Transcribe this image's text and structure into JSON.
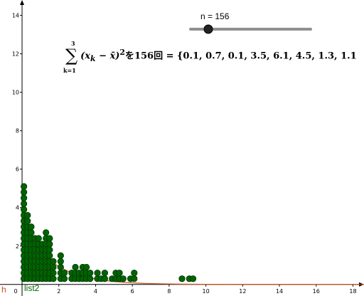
{
  "slider": {
    "label": "n = 156",
    "value": 156
  },
  "formula": {
    "upper": "3",
    "lower": "k=1",
    "expr_main": "(x",
    "expr_sub1": "k",
    "expr_mid": " − x̄)",
    "expr_sup": "2",
    "text_after": "を156回 = {0.1, 0.7, 0.1, 3.5, 6.1, 4.5, 1.3, 1.1"
  },
  "labels": {
    "function": "h",
    "list": "list2"
  },
  "colors": {
    "points": "#006400",
    "point_stroke": "#003200",
    "curve": "#c8501e",
    "axis": "#000000"
  },
  "chart_data": {
    "type": "scatter",
    "x_ticks": [
      "0",
      "2",
      "4",
      "6",
      "8",
      "10",
      "12",
      "14",
      "16",
      "18"
    ],
    "y_ticks": [
      "2",
      "4",
      "6",
      "8",
      "10",
      "12",
      "14"
    ],
    "xlim": [
      -1.2,
      18.6
    ],
    "ylim": [
      -0.6,
      14.8
    ],
    "series": [
      {
        "points": [
          [
            0.1,
            0.3
          ],
          [
            0.1,
            0.6
          ],
          [
            0.1,
            0.9
          ],
          [
            0.1,
            1.2
          ],
          [
            0.1,
            1.5
          ],
          [
            0.1,
            1.8
          ],
          [
            0.1,
            2.1
          ],
          [
            0.1,
            2.4
          ],
          [
            0.1,
            2.7
          ],
          [
            0.1,
            3.0
          ],
          [
            0.1,
            3.3
          ],
          [
            0.1,
            3.6
          ],
          [
            0.1,
            3.9
          ],
          [
            0.1,
            4.2
          ],
          [
            0.1,
            4.5
          ],
          [
            0.1,
            4.8
          ],
          [
            0.1,
            5.1
          ],
          [
            0.3,
            0.3
          ],
          [
            0.3,
            0.6
          ],
          [
            0.3,
            0.9
          ],
          [
            0.3,
            1.2
          ],
          [
            0.3,
            1.5
          ],
          [
            0.3,
            1.8
          ],
          [
            0.3,
            2.1
          ],
          [
            0.3,
            2.4
          ],
          [
            0.3,
            2.7
          ],
          [
            0.3,
            3.0
          ],
          [
            0.3,
            3.3
          ],
          [
            0.3,
            3.6
          ],
          [
            0.5,
            0.3
          ],
          [
            0.5,
            0.6
          ],
          [
            0.5,
            0.9
          ],
          [
            0.5,
            1.2
          ],
          [
            0.5,
            1.5
          ],
          [
            0.5,
            1.8
          ],
          [
            0.5,
            2.1
          ],
          [
            0.5,
            2.4
          ],
          [
            0.5,
            2.7
          ],
          [
            0.5,
            3.0
          ],
          [
            0.7,
            0.3
          ],
          [
            0.7,
            0.6
          ],
          [
            0.7,
            0.9
          ],
          [
            0.7,
            1.2
          ],
          [
            0.7,
            1.5
          ],
          [
            0.7,
            1.8
          ],
          [
            0.7,
            2.1
          ],
          [
            0.7,
            2.4
          ],
          [
            0.9,
            0.3
          ],
          [
            0.9,
            0.6
          ],
          [
            0.9,
            0.9
          ],
          [
            0.9,
            1.2
          ],
          [
            0.9,
            1.5
          ],
          [
            0.9,
            1.8
          ],
          [
            0.9,
            2.1
          ],
          [
            0.9,
            2.4
          ],
          [
            1.1,
            0.3
          ],
          [
            1.1,
            0.6
          ],
          [
            1.1,
            0.9
          ],
          [
            1.1,
            1.2
          ],
          [
            1.1,
            1.5
          ],
          [
            1.1,
            1.8
          ],
          [
            1.1,
            2.1
          ],
          [
            1.3,
            0.3
          ],
          [
            1.3,
            0.6
          ],
          [
            1.3,
            0.9
          ],
          [
            1.3,
            1.2
          ],
          [
            1.3,
            1.5
          ],
          [
            1.3,
            1.8
          ],
          [
            1.3,
            2.1
          ],
          [
            1.3,
            2.4
          ],
          [
            1.3,
            2.7
          ],
          [
            1.5,
            0.3
          ],
          [
            1.5,
            0.6
          ],
          [
            1.5,
            0.9
          ],
          [
            1.5,
            1.2
          ],
          [
            1.5,
            1.5
          ],
          [
            1.5,
            1.8
          ],
          [
            1.5,
            2.1
          ],
          [
            1.5,
            2.4
          ],
          [
            1.7,
            0.3
          ],
          [
            1.7,
            0.6
          ],
          [
            1.7,
            0.9
          ],
          [
            1.7,
            1.2
          ],
          [
            2.1,
            0.3
          ],
          [
            2.1,
            0.6
          ],
          [
            2.1,
            0.9
          ],
          [
            2.1,
            1.2
          ],
          [
            2.1,
            1.5
          ],
          [
            2.3,
            0.3
          ],
          [
            2.3,
            0.6
          ],
          [
            2.7,
            0.3
          ],
          [
            2.7,
            0.6
          ],
          [
            2.9,
            0.3
          ],
          [
            2.9,
            0.6
          ],
          [
            2.9,
            0.9
          ],
          [
            3.1,
            0.3
          ],
          [
            3.1,
            0.6
          ],
          [
            3.3,
            0.3
          ],
          [
            3.3,
            0.6
          ],
          [
            3.3,
            0.9
          ],
          [
            3.5,
            0.3
          ],
          [
            3.5,
            0.6
          ],
          [
            3.5,
            0.9
          ],
          [
            3.7,
            0.3
          ],
          [
            3.7,
            0.6
          ],
          [
            4.1,
            0.3
          ],
          [
            4.1,
            0.6
          ],
          [
            4.3,
            0.3
          ],
          [
            4.5,
            0.3
          ],
          [
            4.5,
            0.6
          ],
          [
            4.9,
            0.3
          ],
          [
            5.1,
            0.3
          ],
          [
            5.1,
            0.6
          ],
          [
            5.3,
            0.3
          ],
          [
            5.3,
            0.6
          ],
          [
            5.5,
            0.3
          ],
          [
            5.9,
            0.3
          ],
          [
            6.1,
            0.3
          ],
          [
            6.1,
            0.6
          ],
          [
            8.7,
            0.3
          ],
          [
            9.1,
            0.3
          ],
          [
            9.3,
            0.3
          ]
        ]
      }
    ],
    "curve": {
      "form": "a*exp(-b*x)",
      "a": 3.1,
      "b": 0.6,
      "x_start": 0,
      "x_end": 18.6
    }
  }
}
